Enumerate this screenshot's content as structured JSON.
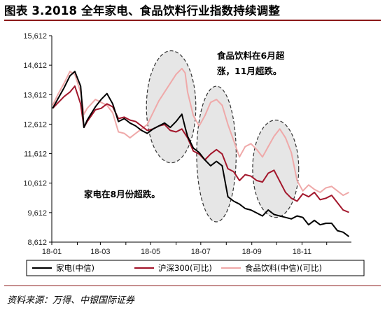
{
  "figure": {
    "title": "图表 3.2018 全年家电、食品饮料行业指数持续调整",
    "source": "资料来源：万得、中银国际证券"
  },
  "chart_data": {
    "type": "line",
    "xlabel": "",
    "ylabel": "",
    "x_ticks": [
      "18-01",
      "18-03",
      "18-05",
      "18-07",
      "18-09",
      "18-11"
    ],
    "y_ticks": [
      8612,
      9612,
      10612,
      11612,
      12612,
      13612,
      14612,
      15612
    ],
    "y_tick_labels": [
      "8,612",
      "9,612",
      "10,612",
      "11,612",
      "12,612",
      "13,612",
      "14,612",
      "15,612"
    ],
    "ylim": [
      8612,
      15612
    ],
    "x_range": [
      "2018-01-01",
      "2018-12-31"
    ],
    "grid": false,
    "legend_position": "bottom",
    "series": [
      {
        "name": "家电(中信)",
        "color": "#000000",
        "points": [
          [
            "2018-01-02",
            13150
          ],
          [
            "2018-01-09",
            13500
          ],
          [
            "2018-01-16",
            13850
          ],
          [
            "2018-01-23",
            14250
          ],
          [
            "2018-01-29",
            14400
          ],
          [
            "2018-02-05",
            13900
          ],
          [
            "2018-02-09",
            12500
          ],
          [
            "2018-02-13",
            12750
          ],
          [
            "2018-02-23",
            13200
          ],
          [
            "2018-03-02",
            13450
          ],
          [
            "2018-03-09",
            13650
          ],
          [
            "2018-03-16",
            13300
          ],
          [
            "2018-03-23",
            12700
          ],
          [
            "2018-03-30",
            12800
          ],
          [
            "2018-04-06",
            12650
          ],
          [
            "2018-04-13",
            12550
          ],
          [
            "2018-04-20",
            12400
          ],
          [
            "2018-04-27",
            12300
          ],
          [
            "2018-05-04",
            12450
          ],
          [
            "2018-05-11",
            12550
          ],
          [
            "2018-05-18",
            12650
          ],
          [
            "2018-05-25",
            12500
          ],
          [
            "2018-06-01",
            12700
          ],
          [
            "2018-06-08",
            12950
          ],
          [
            "2018-06-12",
            12500
          ],
          [
            "2018-06-15",
            12200
          ],
          [
            "2018-06-22",
            11800
          ],
          [
            "2018-06-29",
            11650
          ],
          [
            "2018-07-06",
            11400
          ],
          [
            "2018-07-13",
            11200
          ],
          [
            "2018-07-20",
            11350
          ],
          [
            "2018-07-27",
            11200
          ],
          [
            "2018-08-03",
            10150
          ],
          [
            "2018-08-10",
            10000
          ],
          [
            "2018-08-17",
            9900
          ],
          [
            "2018-08-24",
            9750
          ],
          [
            "2018-08-31",
            9700
          ],
          [
            "2018-09-07",
            9600
          ],
          [
            "2018-09-14",
            9500
          ],
          [
            "2018-09-21",
            9700
          ],
          [
            "2018-09-28",
            9550
          ],
          [
            "2018-10-12",
            9450
          ],
          [
            "2018-10-19",
            9400
          ],
          [
            "2018-10-26",
            9500
          ],
          [
            "2018-11-02",
            9450
          ],
          [
            "2018-11-09",
            9200
          ],
          [
            "2018-11-16",
            9350
          ],
          [
            "2018-11-23",
            9200
          ],
          [
            "2018-11-30",
            9250
          ],
          [
            "2018-12-07",
            9250
          ],
          [
            "2018-12-14",
            9000
          ],
          [
            "2018-12-21",
            8950
          ],
          [
            "2018-12-28",
            8800
          ]
        ]
      },
      {
        "name": "沪深300(可比)",
        "color": "#a3172c",
        "points": [
          [
            "2018-01-02",
            13150
          ],
          [
            "2018-01-09",
            13350
          ],
          [
            "2018-01-16",
            13550
          ],
          [
            "2018-01-23",
            13700
          ],
          [
            "2018-01-29",
            13900
          ],
          [
            "2018-02-05",
            13300
          ],
          [
            "2018-02-09",
            12500
          ],
          [
            "2018-02-13",
            12700
          ],
          [
            "2018-02-23",
            13100
          ],
          [
            "2018-03-02",
            13150
          ],
          [
            "2018-03-09",
            13300
          ],
          [
            "2018-03-16",
            13200
          ],
          [
            "2018-03-23",
            12800
          ],
          [
            "2018-03-30",
            12850
          ],
          [
            "2018-04-06",
            12750
          ],
          [
            "2018-04-13",
            12700
          ],
          [
            "2018-04-20",
            12550
          ],
          [
            "2018-04-27",
            12400
          ],
          [
            "2018-05-04",
            12450
          ],
          [
            "2018-05-11",
            12550
          ],
          [
            "2018-05-18",
            12600
          ],
          [
            "2018-05-25",
            12400
          ],
          [
            "2018-06-01",
            12350
          ],
          [
            "2018-06-08",
            12450
          ],
          [
            "2018-06-15",
            12150
          ],
          [
            "2018-06-22",
            11700
          ],
          [
            "2018-06-29",
            11600
          ],
          [
            "2018-07-06",
            11400
          ],
          [
            "2018-07-13",
            11600
          ],
          [
            "2018-07-20",
            11750
          ],
          [
            "2018-07-27",
            11600
          ],
          [
            "2018-08-03",
            11100
          ],
          [
            "2018-08-10",
            11000
          ],
          [
            "2018-08-17",
            10700
          ],
          [
            "2018-08-24",
            10900
          ],
          [
            "2018-08-31",
            10850
          ],
          [
            "2018-09-07",
            10700
          ],
          [
            "2018-09-14",
            10650
          ],
          [
            "2018-09-21",
            10950
          ],
          [
            "2018-09-28",
            11050
          ],
          [
            "2018-10-12",
            10300
          ],
          [
            "2018-10-19",
            10100
          ],
          [
            "2018-10-26",
            10000
          ],
          [
            "2018-11-02",
            10250
          ],
          [
            "2018-11-09",
            10150
          ],
          [
            "2018-11-16",
            10300
          ],
          [
            "2018-11-23",
            10050
          ],
          [
            "2018-11-30",
            10100
          ],
          [
            "2018-12-07",
            10200
          ],
          [
            "2018-12-14",
            9950
          ],
          [
            "2018-12-21",
            9700
          ],
          [
            "2018-12-28",
            9620
          ]
        ]
      },
      {
        "name": "食品饮料(中信)(可比)",
        "color": "#efa9a9",
        "points": [
          [
            "2018-01-02",
            13250
          ],
          [
            "2018-01-09",
            13650
          ],
          [
            "2018-01-16",
            14000
          ],
          [
            "2018-01-23",
            14400
          ],
          [
            "2018-01-29",
            14300
          ],
          [
            "2018-02-05",
            13700
          ],
          [
            "2018-02-09",
            12950
          ],
          [
            "2018-02-13",
            13150
          ],
          [
            "2018-02-23",
            13450
          ],
          [
            "2018-03-02",
            13350
          ],
          [
            "2018-03-09",
            13250
          ],
          [
            "2018-03-16",
            13000
          ],
          [
            "2018-03-23",
            12350
          ],
          [
            "2018-03-30",
            12300
          ],
          [
            "2018-04-06",
            12150
          ],
          [
            "2018-04-13",
            12300
          ],
          [
            "2018-04-20",
            12450
          ],
          [
            "2018-04-27",
            12600
          ],
          [
            "2018-05-04",
            13000
          ],
          [
            "2018-05-11",
            13400
          ],
          [
            "2018-05-18",
            13700
          ],
          [
            "2018-05-25",
            14000
          ],
          [
            "2018-06-01",
            14300
          ],
          [
            "2018-06-08",
            14500
          ],
          [
            "2018-06-12",
            14350
          ],
          [
            "2018-06-15",
            13700
          ],
          [
            "2018-06-22",
            12900
          ],
          [
            "2018-06-29",
            12550
          ],
          [
            "2018-07-06",
            12900
          ],
          [
            "2018-07-13",
            13350
          ],
          [
            "2018-07-20",
            13450
          ],
          [
            "2018-07-27",
            13250
          ],
          [
            "2018-08-03",
            12600
          ],
          [
            "2018-08-10",
            12050
          ],
          [
            "2018-08-17",
            11500
          ],
          [
            "2018-08-24",
            11850
          ],
          [
            "2018-08-31",
            11950
          ],
          [
            "2018-09-07",
            11750
          ],
          [
            "2018-09-14",
            11500
          ],
          [
            "2018-09-21",
            11850
          ],
          [
            "2018-09-28",
            12200
          ],
          [
            "2018-10-05",
            12450
          ],
          [
            "2018-10-12",
            12150
          ],
          [
            "2018-10-19",
            11650
          ],
          [
            "2018-10-26",
            10700
          ],
          [
            "2018-11-02",
            10350
          ],
          [
            "2018-11-09",
            10550
          ],
          [
            "2018-11-16",
            10400
          ],
          [
            "2018-11-23",
            10300
          ],
          [
            "2018-11-30",
            10450
          ],
          [
            "2018-12-07",
            10500
          ],
          [
            "2018-12-14",
            10350
          ],
          [
            "2018-12-21",
            10200
          ],
          [
            "2018-12-28",
            10300
          ]
        ]
      }
    ],
    "annotations": [
      {
        "lines": [
          "食品饮料在6月超",
          "涨，11月超跌。"
        ]
      },
      {
        "lines": [
          "家电在8月份超跌。"
        ]
      }
    ],
    "highlight_regions": [
      {
        "x_range": [
          "2018-04-26",
          "2018-06-25"
        ],
        "y_range": [
          11300,
          15100
        ]
      },
      {
        "x_range": [
          "2018-06-26",
          "2018-08-13"
        ],
        "y_range": [
          9300,
          13900
        ]
      },
      {
        "x_range": [
          "2018-09-02",
          "2018-10-28"
        ],
        "y_range": [
          9450,
          12750
        ]
      }
    ]
  }
}
